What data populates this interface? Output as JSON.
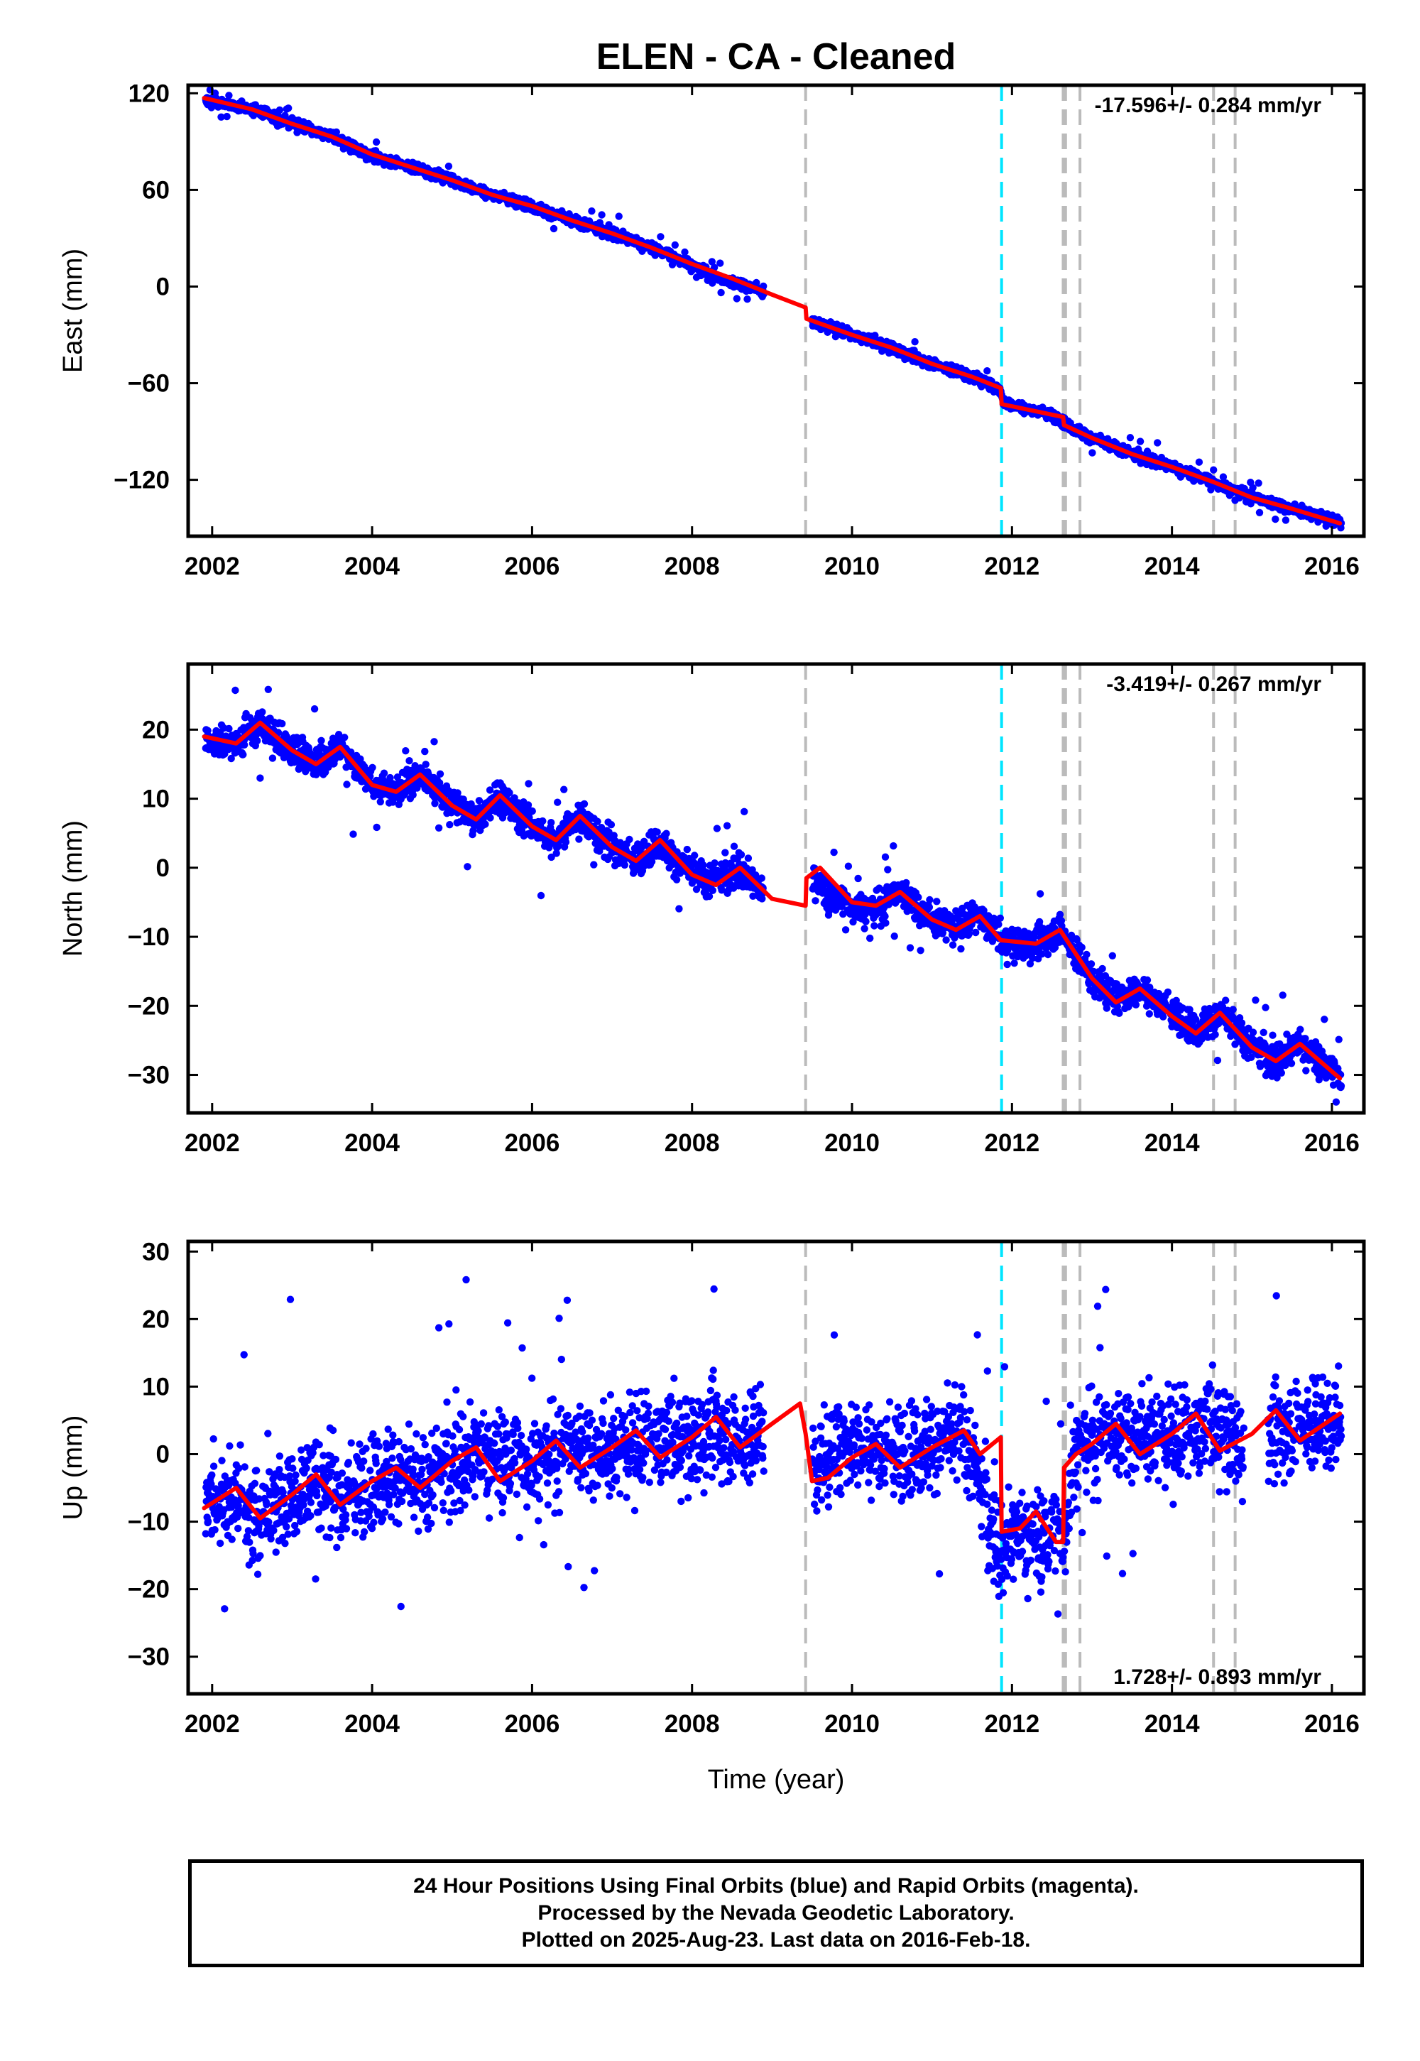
{
  "title": "ELEN  - CA - Cleaned",
  "footer": {
    "line1": "24 Hour Positions Using Final Orbits (blue) and Rapid Orbits (magenta).",
    "line2": "Processed by the Nevada Geodetic Laboratory.",
    "line3": "Plotted on 2025-Aug-23. Last data on 2016-Feb-18."
  },
  "colors": {
    "points": "#0000ff",
    "model": "#ff0000",
    "equipment_lines": "#bbbbbb",
    "event_line": "#00e5ff"
  },
  "chart_data": [
    {
      "type": "scatter",
      "ylabel": "East (mm)",
      "xlabel": "",
      "xlim": [
        2001.7,
        2016.4
      ],
      "ylim": [
        -155,
        125
      ],
      "xticks": [
        "2002",
        "2004",
        "2006",
        "2008",
        "2010",
        "2012",
        "2014",
        "2016"
      ],
      "yticks": [
        "120",
        "60",
        "0",
        "−60",
        "−120"
      ],
      "rate_label": "-17.596+/- 0.284 mm/yr",
      "rate_position": "top-right",
      "grid": false,
      "series": [
        {
          "role": "positions",
          "style": "points",
          "anchors": [
            [
              2001.9,
              116
            ],
            [
              2002.5,
              110
            ],
            [
              2003.0,
              101
            ],
            [
              2003.5,
              93
            ],
            [
              2004.0,
              81
            ],
            [
              2004.5,
              74
            ],
            [
              2005.0,
              66
            ],
            [
              2005.5,
              57
            ],
            [
              2006.0,
              50
            ],
            [
              2006.5,
              41
            ],
            [
              2007.0,
              33
            ],
            [
              2007.5,
              24
            ],
            [
              2007.9,
              16
            ],
            [
              2008.3,
              5
            ],
            [
              2008.8,
              -1
            ],
            [
              2009.5,
              -22
            ],
            [
              2010.0,
              -30
            ],
            [
              2010.5,
              -38
            ],
            [
              2011.0,
              -48
            ],
            [
              2011.5,
              -56
            ],
            [
              2011.85,
              -64
            ],
            [
              2011.9,
              -72
            ],
            [
              2012.5,
              -80
            ],
            [
              2012.7,
              -86
            ],
            [
              2013.0,
              -94
            ],
            [
              2013.5,
              -104
            ],
            [
              2014.0,
              -112
            ],
            [
              2014.5,
              -121
            ],
            [
              2015.0,
              -131
            ],
            [
              2015.5,
              -138
            ],
            [
              2016.1,
              -147
            ]
          ],
          "gaps": [
            [
              2008.9,
              2009.5
            ]
          ],
          "noise": 2.2
        },
        {
          "role": "model",
          "style": "line",
          "anchors": [
            [
              2001.9,
              117
            ],
            [
              2002.5,
              110
            ],
            [
              2003.0,
              101
            ],
            [
              2003.5,
              93
            ],
            [
              2004.0,
              82
            ],
            [
              2004.5,
              74
            ],
            [
              2005.0,
              66
            ],
            [
              2005.5,
              57
            ],
            [
              2006.0,
              50
            ],
            [
              2006.5,
              41
            ],
            [
              2007.0,
              33
            ],
            [
              2007.5,
              24
            ],
            [
              2008.0,
              14
            ],
            [
              2008.5,
              5
            ],
            [
              2009.0,
              -5
            ],
            [
              2009.42,
              -13
            ],
            [
              2009.43,
              -20
            ],
            [
              2010.0,
              -30
            ],
            [
              2010.5,
              -38
            ],
            [
              2011.0,
              -48
            ],
            [
              2011.5,
              -56
            ],
            [
              2011.86,
              -63
            ],
            [
              2011.87,
              -73
            ],
            [
              2012.64,
              -81
            ],
            [
              2012.65,
              -86
            ],
            [
              2013.0,
              -94
            ],
            [
              2013.5,
              -104
            ],
            [
              2014.0,
              -112
            ],
            [
              2014.5,
              -121
            ],
            [
              2015.0,
              -131
            ],
            [
              2015.5,
              -138
            ],
            [
              2016.1,
              -147
            ]
          ]
        }
      ]
    },
    {
      "type": "scatter",
      "ylabel": "North (mm)",
      "xlabel": "",
      "xlim": [
        2001.7,
        2016.4
      ],
      "ylim": [
        -35.5,
        29.5
      ],
      "xticks": [
        "2002",
        "2004",
        "2006",
        "2008",
        "2010",
        "2012",
        "2014",
        "2016"
      ],
      "yticks": [
        "20",
        "10",
        "0",
        "−10",
        "−20",
        "−30"
      ],
      "rate_label": "-3.419+/- 0.267 mm/yr",
      "rate_position": "top-right",
      "grid": false,
      "series": [
        {
          "role": "positions",
          "style": "points",
          "anchors": [
            [
              2001.9,
              18.5
            ],
            [
              2002.3,
              18
            ],
            [
              2002.6,
              21
            ],
            [
              2003.0,
              17
            ],
            [
              2003.3,
              15
            ],
            [
              2003.6,
              17.5
            ],
            [
              2004.0,
              12
            ],
            [
              2004.3,
              11
            ],
            [
              2004.6,
              13.5
            ],
            [
              2005.0,
              9
            ],
            [
              2005.3,
              7
            ],
            [
              2005.6,
              10.5
            ],
            [
              2006.0,
              6
            ],
            [
              2006.3,
              4
            ],
            [
              2006.6,
              7.5
            ],
            [
              2007.0,
              3
            ],
            [
              2007.3,
              1
            ],
            [
              2007.6,
              4
            ],
            [
              2007.8,
              1
            ],
            [
              2008.2,
              -2
            ],
            [
              2008.6,
              0
            ],
            [
              2008.9,
              -4
            ],
            [
              2009.5,
              -1
            ],
            [
              2009.7,
              -4
            ],
            [
              2010.0,
              -5.5
            ],
            [
              2010.3,
              -6
            ],
            [
              2010.6,
              -3.5
            ],
            [
              2011.0,
              -7.5
            ],
            [
              2011.3,
              -9
            ],
            [
              2011.6,
              -7
            ],
            [
              2011.9,
              -11
            ],
            [
              2012.3,
              -11
            ],
            [
              2012.6,
              -9
            ],
            [
              2013.0,
              -16
            ],
            [
              2013.3,
              -19
            ],
            [
              2013.6,
              -17.5
            ],
            [
              2014.0,
              -21
            ],
            [
              2014.3,
              -23.5
            ],
            [
              2014.6,
              -21
            ],
            [
              2015.0,
              -26
            ],
            [
              2015.3,
              -28
            ],
            [
              2015.6,
              -25.5
            ],
            [
              2016.1,
              -30.5
            ]
          ],
          "gaps": [
            [
              2008.9,
              2009.5
            ]
          ],
          "noise": 1.6
        },
        {
          "role": "model",
          "style": "line",
          "anchors": [
            [
              2001.9,
              19
            ],
            [
              2002.3,
              18
            ],
            [
              2002.6,
              21
            ],
            [
              2003.0,
              17
            ],
            [
              2003.3,
              15
            ],
            [
              2003.6,
              17.5
            ],
            [
              2004.0,
              12
            ],
            [
              2004.3,
              11
            ],
            [
              2004.6,
              13.5
            ],
            [
              2005.0,
              9
            ],
            [
              2005.3,
              7
            ],
            [
              2005.6,
              10.5
            ],
            [
              2006.0,
              6
            ],
            [
              2006.3,
              4
            ],
            [
              2006.6,
              7.5
            ],
            [
              2007.0,
              3
            ],
            [
              2007.3,
              1
            ],
            [
              2007.6,
              4
            ],
            [
              2008.0,
              -1
            ],
            [
              2008.3,
              -2.5
            ],
            [
              2008.6,
              0
            ],
            [
              2009.0,
              -4.5
            ],
            [
              2009.42,
              -5.5
            ],
            [
              2009.43,
              -1.5
            ],
            [
              2009.6,
              0
            ],
            [
              2010.0,
              -5
            ],
            [
              2010.3,
              -5.5
            ],
            [
              2010.6,
              -3.5
            ],
            [
              2011.0,
              -7.5
            ],
            [
              2011.3,
              -9
            ],
            [
              2011.6,
              -7
            ],
            [
              2011.86,
              -10.5
            ],
            [
              2012.3,
              -11
            ],
            [
              2012.6,
              -9
            ],
            [
              2013.0,
              -16
            ],
            [
              2013.3,
              -19.5
            ],
            [
              2013.6,
              -17.5
            ],
            [
              2014.0,
              -21.5
            ],
            [
              2014.3,
              -24
            ],
            [
              2014.6,
              -21
            ],
            [
              2015.0,
              -26
            ],
            [
              2015.3,
              -28
            ],
            [
              2015.6,
              -25.5
            ],
            [
              2016.1,
              -30.5
            ]
          ]
        }
      ]
    },
    {
      "type": "scatter",
      "ylabel": "Up (mm)",
      "xlabel": "Time (year)",
      "xlim": [
        2001.7,
        2016.4
      ],
      "ylim": [
        -35.5,
        31.5
      ],
      "xticks": [
        "2002",
        "2004",
        "2006",
        "2008",
        "2010",
        "2012",
        "2014",
        "2016"
      ],
      "yticks": [
        "30",
        "20",
        "10",
        "0",
        "−10",
        "−20",
        "−30"
      ],
      "rate_label": "1.728+/- 0.893 mm/yr",
      "rate_position": "bottom-right",
      "grid": false,
      "series": [
        {
          "role": "positions",
          "style": "points",
          "anchors": [
            [
              2001.9,
              -8
            ],
            [
              2002.3,
              -6
            ],
            [
              2002.6,
              -9.5
            ],
            [
              2003.0,
              -6
            ],
            [
              2003.3,
              -3
            ],
            [
              2003.6,
              -7
            ],
            [
              2004.0,
              -4
            ],
            [
              2004.3,
              -2
            ],
            [
              2004.6,
              -5
            ],
            [
              2005.0,
              -1
            ],
            [
              2005.5,
              0
            ],
            [
              2006.0,
              -1
            ],
            [
              2006.5,
              1
            ],
            [
              2007.0,
              0
            ],
            [
              2007.5,
              2
            ],
            [
              2008.0,
              2
            ],
            [
              2008.3,
              4
            ],
            [
              2008.6,
              1
            ],
            [
              2008.9,
              4
            ],
            [
              2009.5,
              -2
            ],
            [
              2010.0,
              2
            ],
            [
              2010.5,
              0
            ],
            [
              2011.0,
              2
            ],
            [
              2011.4,
              3
            ],
            [
              2011.6,
              -5
            ],
            [
              2011.85,
              -14
            ],
            [
              2012.1,
              -12
            ],
            [
              2012.4,
              -12
            ],
            [
              2012.65,
              -12
            ],
            [
              2012.8,
              1
            ],
            [
              2013.0,
              2
            ],
            [
              2013.5,
              3
            ],
            [
              2014.0,
              2
            ],
            [
              2014.5,
              4
            ],
            [
              2015.0,
              1
            ],
            [
              2015.5,
              4
            ],
            [
              2016.1,
              5
            ]
          ],
          "gaps": [
            [
              2008.9,
              2009.5
            ],
            [
              2014.9,
              2015.2
            ]
          ],
          "noise": 4.8
        },
        {
          "role": "model",
          "style": "line",
          "anchors": [
            [
              2001.9,
              -8
            ],
            [
              2002.3,
              -5
            ],
            [
              2002.6,
              -9.5
            ],
            [
              2003.0,
              -6
            ],
            [
              2003.3,
              -3
            ],
            [
              2003.6,
              -7.5
            ],
            [
              2004.0,
              -4
            ],
            [
              2004.3,
              -2
            ],
            [
              2004.6,
              -5
            ],
            [
              2005.0,
              -1
            ],
            [
              2005.3,
              1
            ],
            [
              2005.6,
              -4
            ],
            [
              2006.0,
              -1
            ],
            [
              2006.3,
              2
            ],
            [
              2006.6,
              -2
            ],
            [
              2007.0,
              1
            ],
            [
              2007.3,
              3.5
            ],
            [
              2007.6,
              -0.5
            ],
            [
              2008.0,
              2.5
            ],
            [
              2008.3,
              5.5
            ],
            [
              2008.6,
              1
            ],
            [
              2009.0,
              4.5
            ],
            [
              2009.35,
              7.5
            ],
            [
              2009.42,
              3
            ],
            [
              2009.5,
              -4
            ],
            [
              2009.7,
              -3.5
            ],
            [
              2010.0,
              -0.5
            ],
            [
              2010.3,
              1.5
            ],
            [
              2010.6,
              -2
            ],
            [
              2011.0,
              1
            ],
            [
              2011.4,
              3.5
            ],
            [
              2011.6,
              0
            ],
            [
              2011.86,
              2.5
            ],
            [
              2011.87,
              -11.5
            ],
            [
              2012.1,
              -11
            ],
            [
              2012.3,
              -8.5
            ],
            [
              2012.55,
              -13
            ],
            [
              2012.64,
              -13
            ],
            [
              2012.65,
              -2
            ],
            [
              2012.8,
              0
            ],
            [
              2013.0,
              1.5
            ],
            [
              2013.3,
              4.5
            ],
            [
              2013.6,
              0
            ],
            [
              2014.0,
              3
            ],
            [
              2014.3,
              6
            ],
            [
              2014.6,
              0.5
            ],
            [
              2015.0,
              3
            ],
            [
              2015.3,
              6.5
            ],
            [
              2015.6,
              2
            ],
            [
              2016.1,
              6
            ]
          ]
        }
      ]
    }
  ]
}
